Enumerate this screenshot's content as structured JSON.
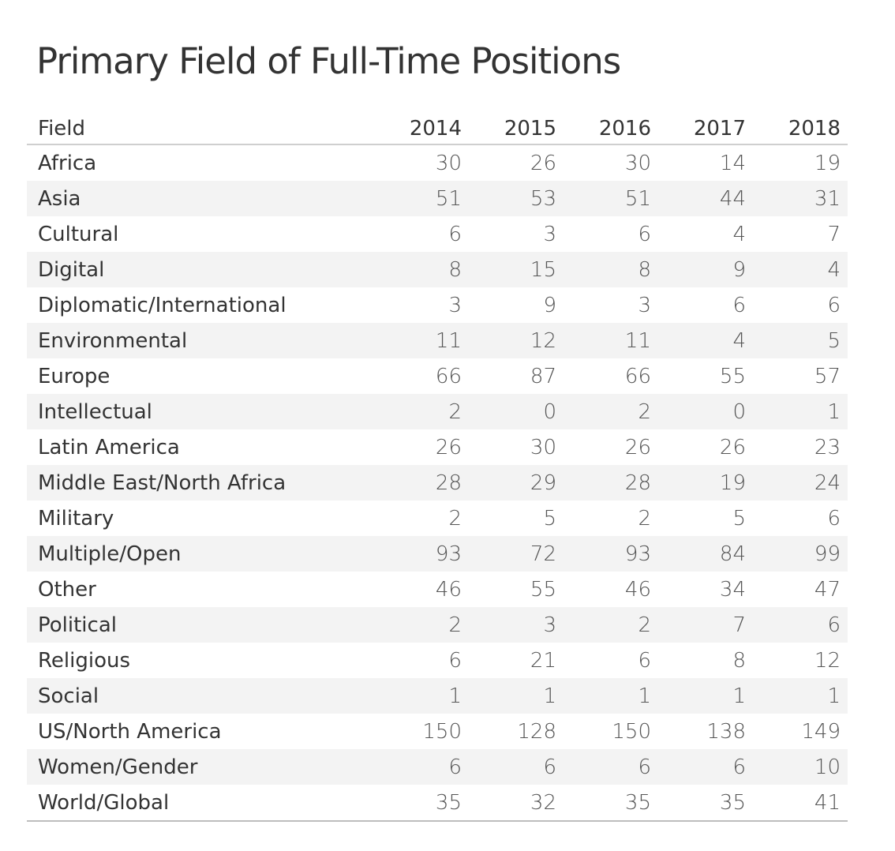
{
  "title": "Primary Field of Full-Time Positions",
  "table": {
    "header": [
      "Field",
      "2014",
      "2015",
      "2016",
      "2017",
      "2018"
    ],
    "rows": [
      {
        "field": "Africa",
        "values": [
          "30",
          "26",
          "30",
          "14",
          "19"
        ]
      },
      {
        "field": "Asia",
        "values": [
          "51",
          "53",
          "51",
          "44",
          "31"
        ]
      },
      {
        "field": "Cultural",
        "values": [
          "6",
          "3",
          "6",
          "4",
          "7"
        ]
      },
      {
        "field": "Digital",
        "values": [
          "8",
          "15",
          "8",
          "9",
          "4"
        ]
      },
      {
        "field": "Diplomatic/International",
        "values": [
          "3",
          "9",
          "3",
          "6",
          "6"
        ]
      },
      {
        "field": "Environmental",
        "values": [
          "11",
          "12",
          "11",
          "4",
          "5"
        ]
      },
      {
        "field": "Europe",
        "values": [
          "66",
          "87",
          "66",
          "55",
          "57"
        ]
      },
      {
        "field": "Intellectual",
        "values": [
          "2",
          "0",
          "2",
          "0",
          "1"
        ]
      },
      {
        "field": "Latin America",
        "values": [
          "26",
          "30",
          "26",
          "26",
          "23"
        ]
      },
      {
        "field": "Middle East/North Africa",
        "values": [
          "28",
          "29",
          "28",
          "19",
          "24"
        ]
      },
      {
        "field": "Military",
        "values": [
          "2",
          "5",
          "2",
          "5",
          "6"
        ]
      },
      {
        "field": "Multiple/Open",
        "values": [
          "93",
          "72",
          "93",
          "84",
          "99"
        ]
      },
      {
        "field": "Other",
        "values": [
          "46",
          "55",
          "46",
          "34",
          "47"
        ]
      },
      {
        "field": "Political",
        "values": [
          "2",
          "3",
          "2",
          "7",
          "6"
        ]
      },
      {
        "field": "Religious",
        "values": [
          "6",
          "21",
          "6",
          "8",
          "12"
        ]
      },
      {
        "field": "Social",
        "values": [
          "1",
          "1",
          "1",
          "1",
          "1"
        ]
      },
      {
        "field": "US/North America",
        "values": [
          "150",
          "128",
          "150",
          "138",
          "149"
        ]
      },
      {
        "field": "Women/Gender",
        "values": [
          "6",
          "6",
          "6",
          "6",
          "10"
        ]
      },
      {
        "field": "World/Global",
        "values": [
          "35",
          "32",
          "35",
          "35",
          "41"
        ]
      }
    ]
  },
  "chart_data": {
    "type": "table",
    "title": "Primary Field of Full-Time Positions",
    "columns": [
      "Field",
      "2014",
      "2015",
      "2016",
      "2017",
      "2018"
    ],
    "categories": [
      "Africa",
      "Asia",
      "Cultural",
      "Digital",
      "Diplomatic/International",
      "Environmental",
      "Europe",
      "Intellectual",
      "Latin America",
      "Middle East/North Africa",
      "Military",
      "Multiple/Open",
      "Other",
      "Political",
      "Religious",
      "Social",
      "US/North America",
      "Women/Gender",
      "World/Global"
    ],
    "series": [
      {
        "name": "2014",
        "values": [
          30,
          51,
          6,
          8,
          3,
          11,
          66,
          2,
          26,
          28,
          2,
          93,
          46,
          2,
          6,
          1,
          150,
          6,
          35
        ]
      },
      {
        "name": "2015",
        "values": [
          26,
          53,
          3,
          15,
          9,
          12,
          87,
          0,
          30,
          29,
          5,
          72,
          55,
          3,
          21,
          1,
          128,
          6,
          32
        ]
      },
      {
        "name": "2016",
        "values": [
          30,
          51,
          6,
          8,
          3,
          11,
          66,
          2,
          26,
          28,
          2,
          93,
          46,
          2,
          6,
          1,
          150,
          6,
          35
        ]
      },
      {
        "name": "2017",
        "values": [
          14,
          44,
          4,
          9,
          6,
          4,
          55,
          0,
          26,
          19,
          5,
          84,
          34,
          7,
          8,
          1,
          138,
          6,
          35
        ]
      },
      {
        "name": "2018",
        "values": [
          19,
          31,
          7,
          4,
          6,
          5,
          57,
          1,
          23,
          24,
          6,
          99,
          47,
          6,
          12,
          1,
          149,
          10,
          41
        ]
      }
    ],
    "grid": false
  }
}
